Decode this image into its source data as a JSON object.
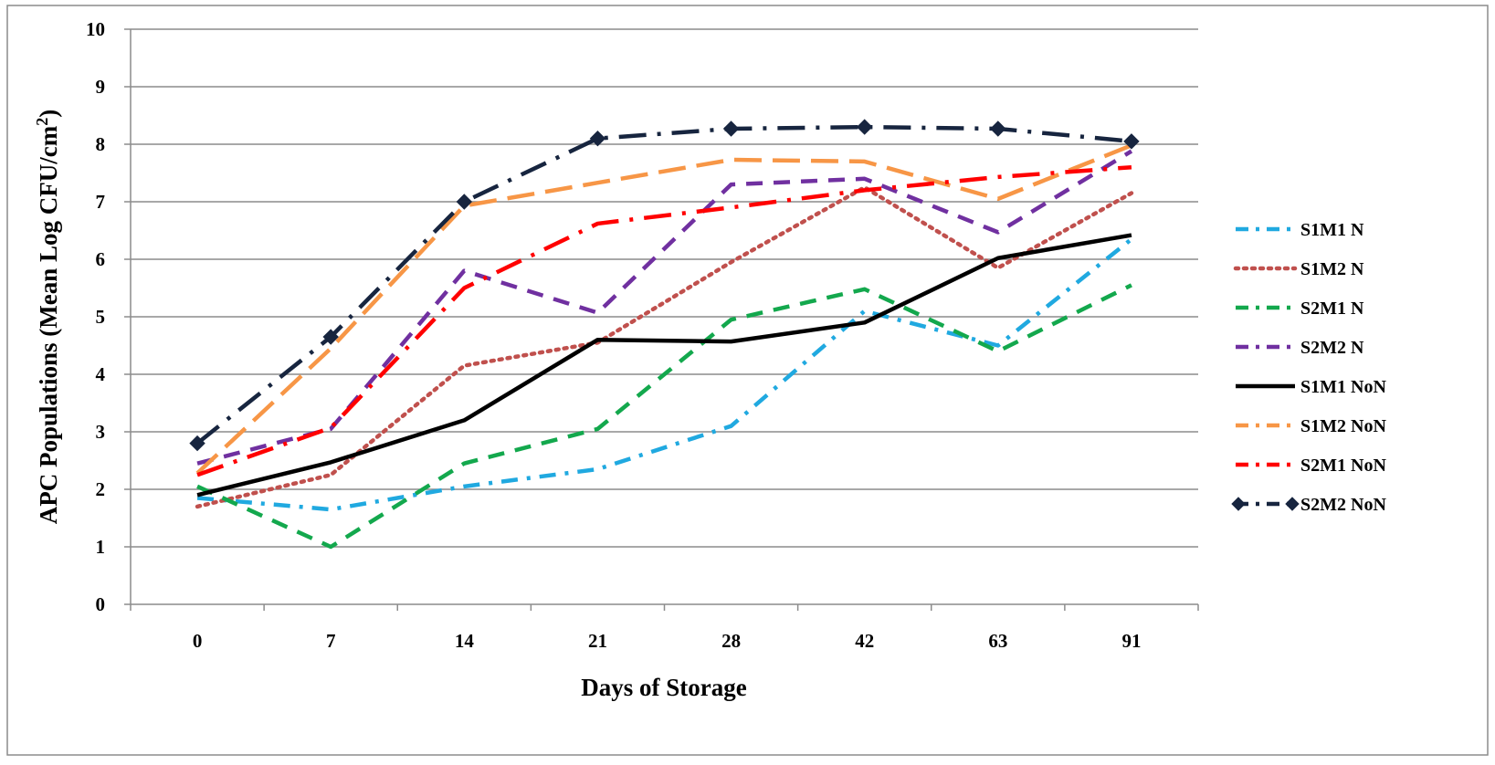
{
  "chart_data": {
    "type": "line",
    "title": "",
    "xlabel": "Days of Storage",
    "ylabel": "APC Populations (Mean Log CFU/cm²)",
    "ylabel_parts": {
      "main": "APC Populations (Mean Log CFU/cm",
      "sup": "2",
      "end": ")"
    },
    "categories": [
      "0",
      "7",
      "14",
      "21",
      "28",
      "42",
      "63",
      "91"
    ],
    "yticks": [
      "0",
      "1",
      "2",
      "3",
      "4",
      "5",
      "6",
      "7",
      "8",
      "9",
      "10"
    ],
    "ylim": [
      0,
      10
    ],
    "grid": true,
    "legend_position": "right",
    "series": [
      {
        "name": "S1M1 N",
        "color": "#20A9E0",
        "dash": "dashdot",
        "values": [
          1.85,
          1.65,
          2.05,
          2.35,
          3.1,
          5.1,
          4.5,
          6.35
        ]
      },
      {
        "name": "S1M2 N",
        "color": "#C0504D",
        "dash": "dot",
        "values": [
          1.7,
          2.25,
          4.15,
          4.55,
          5.95,
          7.25,
          5.85,
          7.15
        ]
      },
      {
        "name": "S2M1 N",
        "color": "#13A84D",
        "dash": "dash",
        "values": [
          2.05,
          1.0,
          2.45,
          3.05,
          4.95,
          5.48,
          4.4,
          5.55
        ]
      },
      {
        "name": "S2M2 N",
        "color": "#7030A0",
        "dash": "dash",
        "values": [
          2.45,
          3.05,
          5.8,
          5.07,
          7.3,
          7.4,
          6.47,
          7.88
        ]
      },
      {
        "name": "S1M1 NoN",
        "color": "#000000",
        "dash": "solid",
        "values": [
          1.9,
          2.47,
          3.2,
          4.6,
          4.57,
          4.9,
          6.02,
          6.42
        ]
      },
      {
        "name": "S1M2 NoN",
        "color": "#F79646",
        "dash": "longdash",
        "values": [
          2.28,
          4.45,
          6.93,
          7.33,
          7.73,
          7.7,
          7.05,
          7.98
        ]
      },
      {
        "name": "S2M1 NoN",
        "color": "#FF0000",
        "dash": "longdashdot",
        "values": [
          2.25,
          3.07,
          5.5,
          6.62,
          6.9,
          7.2,
          7.43,
          7.6
        ]
      },
      {
        "name": "S2M2 NoN",
        "color": "#17253F",
        "dash": "longdashdot",
        "marker": "diamond",
        "values": [
          2.8,
          4.65,
          7.0,
          8.1,
          8.27,
          8.3,
          8.27,
          8.05
        ]
      }
    ]
  }
}
